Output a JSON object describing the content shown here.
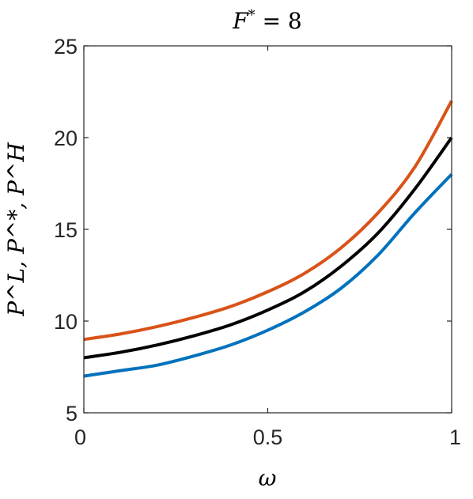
{
  "chart_data": {
    "type": "line",
    "title": "F* = 8",
    "title_parts": {
      "var": "F",
      "sup": "*",
      "rest": " = 8"
    },
    "xlabel": "ω",
    "ylabel": "P^L, P^*, P^H",
    "xlim": [
      0,
      1
    ],
    "ylim": [
      5,
      25
    ],
    "xticks": [
      0,
      0.5,
      1
    ],
    "xtick_labels": [
      "0",
      "0.5",
      "1"
    ],
    "yticks": [
      5,
      10,
      15,
      20,
      25
    ],
    "ytick_labels": [
      "5",
      "10",
      "15",
      "20",
      "25"
    ],
    "grid": false,
    "legend": false,
    "x": [
      0,
      0.1,
      0.2,
      0.3,
      0.4,
      0.5,
      0.6,
      0.7,
      0.8,
      0.9,
      1.0
    ],
    "series": [
      {
        "color": "#D95319",
        "values": [
          9.0,
          9.3,
          9.7,
          10.2,
          10.8,
          11.6,
          12.6,
          14.0,
          15.9,
          18.4,
          22.0
        ]
      },
      {
        "color": "#000000",
        "values": [
          8.0,
          8.3,
          8.7,
          9.2,
          9.8,
          10.6,
          11.6,
          13.0,
          14.8,
          17.2,
          20.0
        ]
      },
      {
        "color": "#0072BD",
        "values": [
          7.0,
          7.3,
          7.6,
          8.1,
          8.7,
          9.5,
          10.5,
          11.8,
          13.6,
          15.9,
          18.0
        ]
      }
    ]
  }
}
